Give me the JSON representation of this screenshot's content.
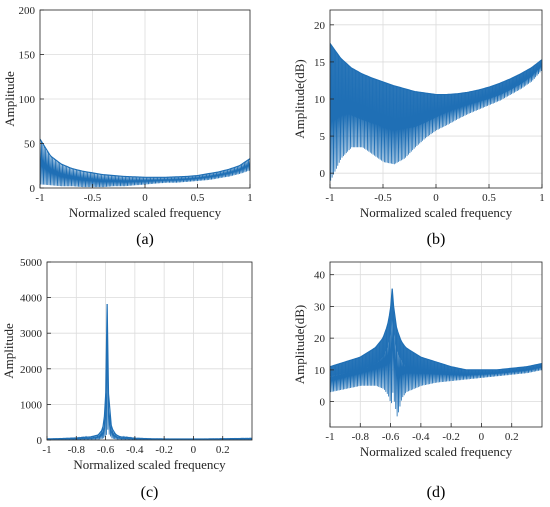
{
  "colors": {
    "series": "#1f6fb5",
    "grid": "#dcdcdc",
    "axis": "#262626"
  },
  "chart_data": [
    {
      "panel": "a",
      "caption": "(a)",
      "type": "line",
      "xlabel": "Normalized scaled frequency",
      "ylabel": "Amplitude",
      "xlim": [
        -1,
        1
      ],
      "ylim": [
        0,
        200
      ],
      "xticks": [
        -1,
        -0.5,
        0,
        0.5,
        1
      ],
      "yticks": [
        0,
        50,
        100,
        150,
        200
      ],
      "grid": true,
      "series": [
        {
          "style": "dense-oscillating",
          "x": [
            -1.0,
            -0.9,
            -0.8,
            -0.7,
            -0.6,
            -0.5,
            -0.4,
            -0.3,
            -0.2,
            -0.1,
            0.0,
            0.1,
            0.2,
            0.3,
            0.4,
            0.5,
            0.6,
            0.7,
            0.8,
            0.9,
            1.0
          ],
          "upper": [
            55,
            36,
            27,
            22,
            19,
            17,
            15,
            14,
            13,
            12.5,
            12,
            12,
            12,
            12.5,
            13,
            14,
            16,
            18,
            21,
            25,
            33
          ],
          "lower": [
            4,
            3,
            2,
            2,
            1,
            1,
            1,
            2,
            2,
            3,
            4,
            5,
            6,
            6,
            7,
            8,
            9,
            11,
            13,
            16,
            20
          ]
        }
      ]
    },
    {
      "panel": "b",
      "caption": "(b)",
      "type": "line",
      "xlabel": "Normalized scaled frequency",
      "ylabel": "Amplitude(dB)",
      "xlim": [
        -1,
        1
      ],
      "ylim": [
        -2,
        22
      ],
      "xticks": [
        -1,
        -0.5,
        0,
        0.5,
        1
      ],
      "yticks": [
        0,
        5,
        10,
        15,
        20
      ],
      "grid": true,
      "series": [
        {
          "style": "dense-oscillating",
          "x": [
            -1.0,
            -0.9,
            -0.8,
            -0.7,
            -0.6,
            -0.5,
            -0.4,
            -0.3,
            -0.2,
            -0.1,
            0.0,
            0.1,
            0.2,
            0.3,
            0.4,
            0.5,
            0.6,
            0.7,
            0.8,
            0.9,
            1.0
          ],
          "upper": [
            17.5,
            15.5,
            14.2,
            13.4,
            12.8,
            12.3,
            11.8,
            11.4,
            11.0,
            10.8,
            10.6,
            10.6,
            10.7,
            10.9,
            11.2,
            11.6,
            12.1,
            12.7,
            13.4,
            14.2,
            15.3
          ],
          "lower": [
            -1.0,
            2.0,
            3.5,
            3.5,
            2.5,
            1.5,
            1.2,
            2.0,
            3.5,
            4.8,
            5.8,
            6.5,
            7.3,
            8.0,
            8.6,
            9.2,
            9.8,
            10.6,
            11.4,
            12.4,
            14.0
          ],
          "band_floor": [
            9.5,
            8.5,
            7.8,
            7.2,
            6.7,
            6.3,
            6.0,
            6.0,
            6.2,
            6.8,
            7.5,
            8.2,
            8.8,
            9.2,
            9.6,
            10.0,
            10.5,
            11.2,
            12.0,
            13.0,
            14.5
          ]
        }
      ]
    },
    {
      "panel": "c",
      "caption": "(c)",
      "type": "line",
      "xlabel": "Normalized scaled frequency",
      "ylabel": "Amplitude",
      "xlim": [
        -1,
        0.4
      ],
      "ylim": [
        0,
        5000
      ],
      "xticks": [
        -1,
        -0.8,
        -0.6,
        -0.4,
        -0.2,
        0,
        0.2
      ],
      "yticks": [
        0,
        1000,
        2000,
        3000,
        4000,
        5000
      ],
      "grid": true,
      "series": [
        {
          "style": "peak",
          "x": [
            -1.0,
            -0.9,
            -0.8,
            -0.7,
            -0.65,
            -0.62,
            -0.6,
            -0.59,
            -0.58,
            -0.56,
            -0.53,
            -0.5,
            -0.4,
            -0.3,
            -0.2,
            -0.1,
            0.0,
            0.1,
            0.2,
            0.3,
            0.4
          ],
          "upper": [
            30,
            40,
            55,
            90,
            140,
            300,
            900,
            4000,
            1300,
            350,
            150,
            90,
            50,
            35,
            30,
            28,
            28,
            30,
            35,
            40,
            45
          ],
          "lower": [
            5,
            5,
            5,
            8,
            15,
            40,
            120,
            300,
            150,
            40,
            15,
            8,
            5,
            5,
            5,
            5,
            5,
            5,
            5,
            5,
            5
          ]
        }
      ]
    },
    {
      "panel": "d",
      "caption": "(d)",
      "type": "line",
      "xlabel": "Normalized scaled frequency",
      "ylabel": "Amplitude(dB)",
      "xlim": [
        -1,
        0.4
      ],
      "ylim": [
        -8,
        44
      ],
      "xticks": [
        -1,
        -0.8,
        -0.6,
        -0.4,
        -0.2,
        0,
        0.2
      ],
      "yticks": [
        0,
        10,
        20,
        30,
        40
      ],
      "grid": true,
      "series": [
        {
          "style": "dense-oscillating",
          "x": [
            -1.0,
            -0.9,
            -0.8,
            -0.7,
            -0.65,
            -0.62,
            -0.6,
            -0.59,
            -0.58,
            -0.56,
            -0.53,
            -0.5,
            -0.4,
            -0.3,
            -0.2,
            -0.1,
            0.0,
            0.1,
            0.2,
            0.3,
            0.4
          ],
          "upper": [
            11,
            12.5,
            14,
            17,
            20,
            24,
            29,
            36,
            30,
            23,
            19,
            17,
            14,
            12.5,
            11,
            10,
            10,
            10,
            10.5,
            11,
            12
          ],
          "lower": [
            3,
            4,
            5,
            5,
            4,
            2,
            -1,
            3,
            0,
            -5,
            1,
            3,
            5,
            6,
            6.5,
            7,
            7.5,
            8,
            8.5,
            9,
            10
          ],
          "band_floor": [
            8,
            9,
            10,
            12,
            14,
            17,
            21,
            27,
            22,
            16,
            13,
            11,
            9,
            8.5,
            8.5,
            8.5,
            8.5,
            9,
            9.5,
            10,
            11
          ]
        }
      ]
    }
  ]
}
